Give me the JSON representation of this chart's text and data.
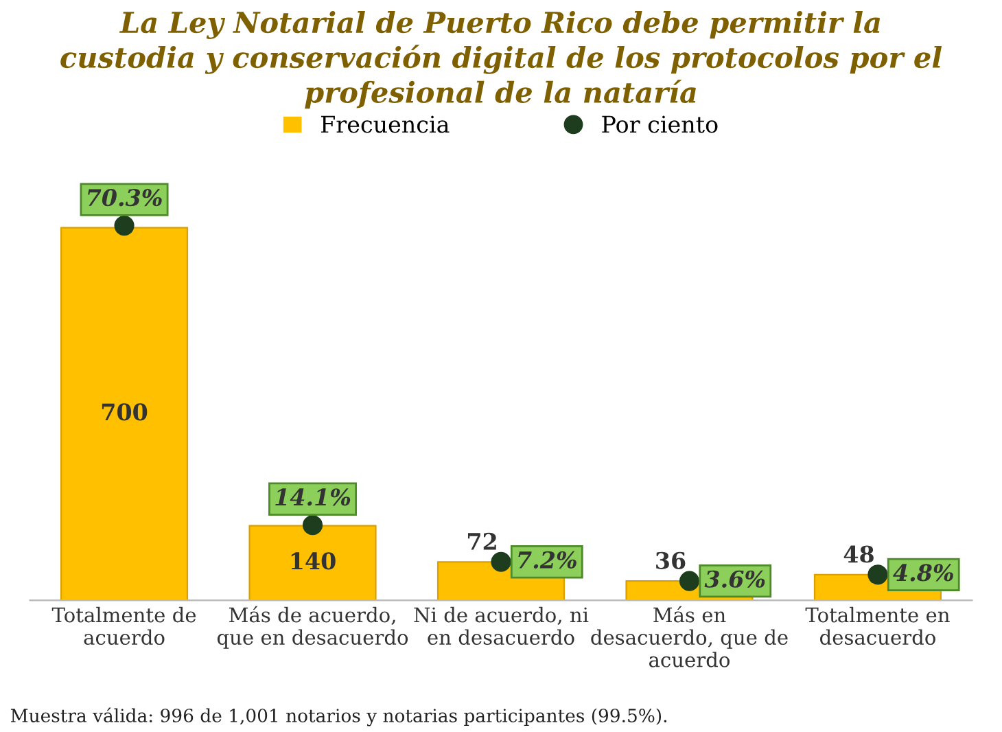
{
  "chart_data": {
    "type": "bar",
    "title": "La Ley Notarial de Puerto Rico debe permitir la\ncustodia y conservación digital de los protocolos por el\nprofesional de la nataría",
    "categories": [
      "Totalmente de\nacuerdo",
      "Más de acuerdo,\nque en desacuerdo",
      "Ni de acuerdo, ni\nen desacuerdo",
      "Más en\ndesacuerdo, que de\nacuerdo",
      "Totalmente en\ndesacuerdo"
    ],
    "series": [
      {
        "name": "Frecuencia",
        "color": "#ffc000",
        "values": [
          700,
          140,
          72,
          36,
          48
        ],
        "value_labels": [
          "700",
          "140",
          "72",
          "36",
          "48"
        ]
      },
      {
        "name": "Por ciento",
        "type": "scatter",
        "axis": "y2",
        "color": "#1e3d1e",
        "values": [
          70.3,
          14.1,
          7.2,
          3.6,
          4.8
        ],
        "value_labels": [
          "70.3%",
          "14.1%",
          "7.2%",
          "3.6%",
          "4.8%"
        ]
      }
    ],
    "tick_labels": "x",
    "legend": "top",
    "grid": false,
    "marker": "circle",
    "annotations": [
      "Muestra válida: 996 de 1,001 notarios y notarias participantes (99.5%)."
    ]
  }
}
